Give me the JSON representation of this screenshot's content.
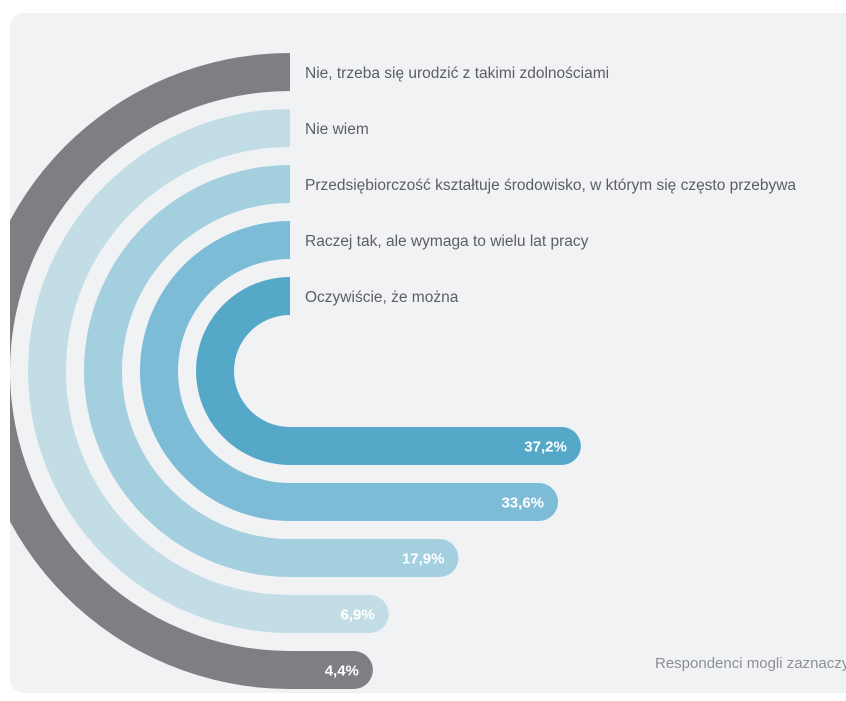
{
  "colors": {
    "background": "#f1f2f4",
    "title": "#3d9fd3",
    "label_text": "#5b5e63",
    "value_text": "#ffffff"
  },
  "header": {
    "title_fragment": ""
  },
  "chart_data": {
    "type": "bar",
    "style": "concentric-rounded-bars",
    "unit": "%",
    "categories": [
      "Nie, trzeba się urodzić z takimi zdolnościami",
      "Nie wiem",
      "Przedsiębiorczość kształtuje środowisko, w którym się często przebywa",
      "Raczej tak, ale wymaga to wielu lat pracy",
      "Oczywiście, że można"
    ],
    "values": [
      4.4,
      6.9,
      17.9,
      33.6,
      37.2
    ],
    "value_labels": [
      "4,4%",
      "6,9%",
      "17,9%",
      "33,6%",
      "37,2%"
    ],
    "bar_colors": [
      "#7d7f82",
      "#c3dde7",
      "#a4cfdf",
      "#7dbcd6",
      "#56a8c8"
    ],
    "footnote": "Respondenci mogli zaznaczy"
  }
}
